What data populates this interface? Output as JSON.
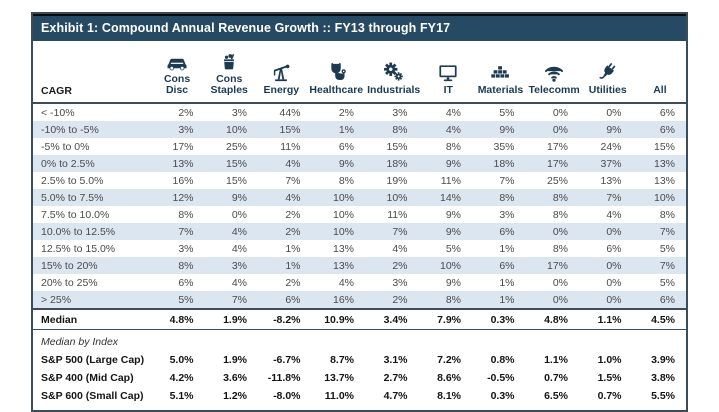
{
  "title": "Exhibit 1: Compound Annual Revenue Growth :: FY13 through FY17",
  "colors": {
    "title_bar_bg": "#264a63",
    "title_text": "#ffffff",
    "stripe_row_bg": "#dce6f1",
    "header_text": "#1c3a52",
    "icon_color": "#1c3a52",
    "border": "#3d4c5a",
    "body_text": "#4a4a4a"
  },
  "table": {
    "row_header_label": "CAGR",
    "columns": [
      {
        "label": "Cons Disc",
        "icon": "car-icon"
      },
      {
        "label": "Cons Staples",
        "icon": "grocery-basket-icon"
      },
      {
        "label": "Energy",
        "icon": "oil-derrick-icon"
      },
      {
        "label": "Healthcare",
        "icon": "stethoscope-icon"
      },
      {
        "label": "Industrials",
        "icon": "gears-icon"
      },
      {
        "label": "IT",
        "icon": "monitor-icon"
      },
      {
        "label": "Materials",
        "icon": "bricks-icon"
      },
      {
        "label": "Telecomm",
        "icon": "wifi-icon"
      },
      {
        "label": "Utilities",
        "icon": "plug-icon"
      },
      {
        "label": "All",
        "icon": null
      }
    ],
    "rows": [
      {
        "label": "< -10%",
        "values": [
          "2%",
          "3%",
          "44%",
          "2%",
          "3%",
          "4%",
          "5%",
          "0%",
          "0%",
          "6%"
        ]
      },
      {
        "label": "-10% to -5%",
        "values": [
          "3%",
          "10%",
          "15%",
          "1%",
          "8%",
          "4%",
          "9%",
          "0%",
          "9%",
          "6%"
        ]
      },
      {
        "label": "-5% to 0%",
        "values": [
          "17%",
          "25%",
          "11%",
          "6%",
          "15%",
          "8%",
          "35%",
          "17%",
          "24%",
          "15%"
        ]
      },
      {
        "label": "0% to 2.5%",
        "values": [
          "13%",
          "15%",
          "4%",
          "9%",
          "18%",
          "9%",
          "18%",
          "17%",
          "37%",
          "13%"
        ]
      },
      {
        "label": "2.5% to 5.0%",
        "values": [
          "16%",
          "15%",
          "7%",
          "8%",
          "19%",
          "11%",
          "7%",
          "25%",
          "13%",
          "13%"
        ]
      },
      {
        "label": "5.0% to 7.5%",
        "values": [
          "12%",
          "9%",
          "4%",
          "10%",
          "10%",
          "14%",
          "8%",
          "8%",
          "7%",
          "10%"
        ]
      },
      {
        "label": "7.5% to 10.0%",
        "values": [
          "8%",
          "0%",
          "2%",
          "10%",
          "11%",
          "9%",
          "3%",
          "8%",
          "4%",
          "8%"
        ]
      },
      {
        "label": "10.0% to 12.5%",
        "values": [
          "7%",
          "4%",
          "2%",
          "10%",
          "7%",
          "9%",
          "6%",
          "0%",
          "0%",
          "7%"
        ]
      },
      {
        "label": "12.5% to 15.0%",
        "values": [
          "3%",
          "4%",
          "1%",
          "13%",
          "4%",
          "5%",
          "1%",
          "8%",
          "6%",
          "5%"
        ]
      },
      {
        "label": "15% to 20%",
        "values": [
          "8%",
          "3%",
          "1%",
          "13%",
          "2%",
          "10%",
          "6%",
          "17%",
          "0%",
          "7%"
        ]
      },
      {
        "label": "20% to 25%",
        "values": [
          "6%",
          "4%",
          "2%",
          "4%",
          "3%",
          "9%",
          "1%",
          "0%",
          "0%",
          "5%"
        ]
      },
      {
        "label": "> 25%",
        "values": [
          "5%",
          "7%",
          "6%",
          "16%",
          "2%",
          "8%",
          "1%",
          "0%",
          "0%",
          "6%"
        ]
      }
    ],
    "median_row": {
      "label": "Median",
      "values": [
        "4.8%",
        "1.9%",
        "-8.2%",
        "10.9%",
        "3.4%",
        "7.9%",
        "0.3%",
        "4.8%",
        "1.1%",
        "4.5%"
      ]
    },
    "index_section_label": "Median by Index",
    "index_rows": [
      {
        "label": "S&P 500 (Large Cap)",
        "values": [
          "5.0%",
          "1.9%",
          "-6.7%",
          "8.7%",
          "3.1%",
          "7.2%",
          "0.8%",
          "1.1%",
          "1.0%",
          "3.9%"
        ]
      },
      {
        "label": "S&P 400 (Mid Cap)",
        "values": [
          "4.2%",
          "3.6%",
          "-11.8%",
          "13.7%",
          "2.7%",
          "8.6%",
          "-0.5%",
          "0.7%",
          "1.5%",
          "3.8%"
        ]
      },
      {
        "label": "S&P 600 (Small Cap)",
        "values": [
          "5.1%",
          "1.2%",
          "-8.0%",
          "11.0%",
          "4.7%",
          "8.1%",
          "0.3%",
          "6.5%",
          "0.7%",
          "5.5%"
        ]
      }
    ]
  },
  "chart_data": {
    "type": "table",
    "title": "Exhibit 1: Compound Annual Revenue Growth :: FY13 through FY17",
    "row_header": "CAGR",
    "columns": [
      "Cons Disc",
      "Cons Staples",
      "Energy",
      "Healthcare",
      "Industrials",
      "IT",
      "Materials",
      "Telecomm",
      "Utilities",
      "All"
    ],
    "rows": [
      {
        "label": "< -10%",
        "values": [
          2,
          3,
          44,
          2,
          3,
          4,
          5,
          0,
          0,
          6
        ]
      },
      {
        "label": "-10% to -5%",
        "values": [
          3,
          10,
          15,
          1,
          8,
          4,
          9,
          0,
          9,
          6
        ]
      },
      {
        "label": "-5% to 0%",
        "values": [
          17,
          25,
          11,
          6,
          15,
          8,
          35,
          17,
          24,
          15
        ]
      },
      {
        "label": "0% to 2.5%",
        "values": [
          13,
          15,
          4,
          9,
          18,
          9,
          18,
          17,
          37,
          13
        ]
      },
      {
        "label": "2.5% to 5.0%",
        "values": [
          16,
          15,
          7,
          8,
          19,
          11,
          7,
          25,
          13,
          13
        ]
      },
      {
        "label": "5.0% to 7.5%",
        "values": [
          12,
          9,
          4,
          10,
          10,
          14,
          8,
          8,
          7,
          10
        ]
      },
      {
        "label": "7.5% to 10.0%",
        "values": [
          8,
          0,
          2,
          10,
          11,
          9,
          3,
          8,
          4,
          8
        ]
      },
      {
        "label": "10.0% to 12.5%",
        "values": [
          7,
          4,
          2,
          10,
          7,
          9,
          6,
          0,
          0,
          7
        ]
      },
      {
        "label": "12.5% to 15.0%",
        "values": [
          3,
          4,
          1,
          13,
          4,
          5,
          1,
          8,
          6,
          5
        ]
      },
      {
        "label": "15% to 20%",
        "values": [
          8,
          3,
          1,
          13,
          2,
          10,
          6,
          17,
          0,
          7
        ]
      },
      {
        "label": "20% to 25%",
        "values": [
          6,
          4,
          2,
          4,
          3,
          9,
          1,
          0,
          0,
          5
        ]
      },
      {
        "label": "> 25%",
        "values": [
          5,
          7,
          6,
          16,
          2,
          8,
          1,
          0,
          0,
          6
        ]
      }
    ],
    "median": {
      "label": "Median",
      "values": [
        4.8,
        1.9,
        -8.2,
        10.9,
        3.4,
        7.9,
        0.3,
        4.8,
        1.1,
        4.5
      ]
    },
    "median_by_index": [
      {
        "label": "S&P 500 (Large Cap)",
        "values": [
          5.0,
          1.9,
          -6.7,
          8.7,
          3.1,
          7.2,
          0.8,
          1.1,
          1.0,
          3.9
        ]
      },
      {
        "label": "S&P 400 (Mid Cap)",
        "values": [
          4.2,
          3.6,
          -11.8,
          13.7,
          2.7,
          8.6,
          -0.5,
          0.7,
          1.5,
          3.8
        ]
      },
      {
        "label": "S&P 600 (Small Cap)",
        "values": [
          5.1,
          1.2,
          -8.0,
          11.0,
          4.7,
          8.1,
          0.3,
          6.5,
          0.7,
          5.5
        ]
      }
    ],
    "units": "percent"
  }
}
